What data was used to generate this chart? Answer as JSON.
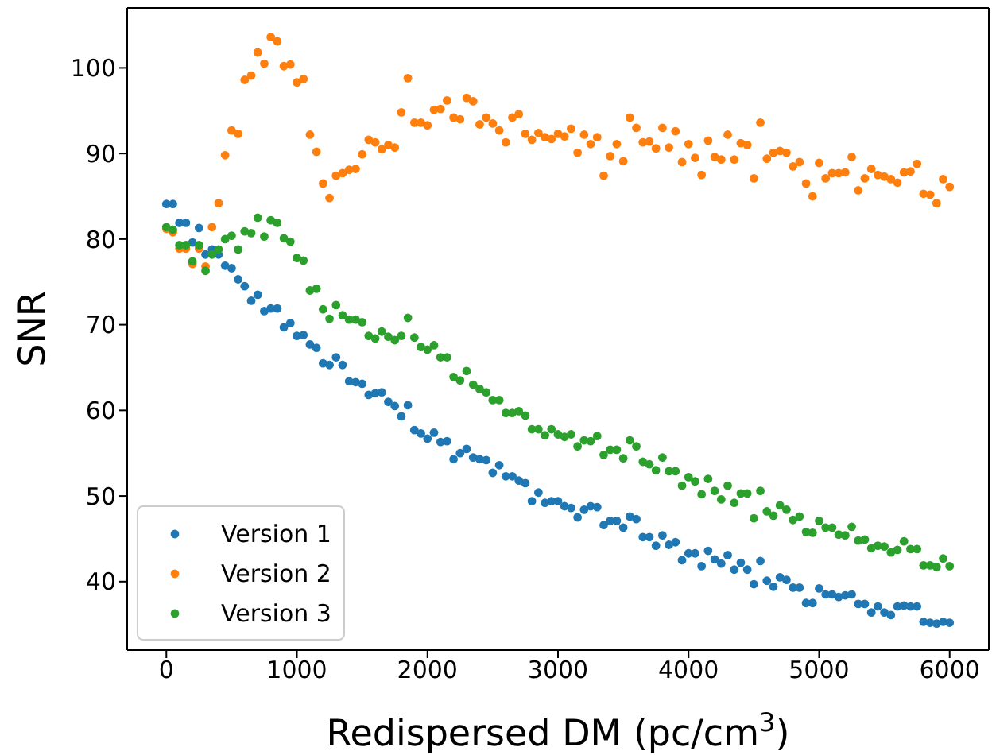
{
  "chart_data": {
    "type": "scatter",
    "xlabel": "Redispersed DM (pc/cm$^{3}$)",
    "ylabel": "SNR",
    "xlim": [
      -300,
      6300
    ],
    "ylim": [
      32,
      107
    ],
    "xticks": [
      0,
      1000,
      2000,
      3000,
      4000,
      5000,
      6000
    ],
    "yticks": [
      40,
      50,
      60,
      70,
      80,
      90,
      100
    ],
    "x": [
      0,
      50,
      100,
      150,
      200,
      250,
      300,
      350,
      400,
      450,
      500,
      550,
      600,
      650,
      700,
      750,
      800,
      850,
      900,
      950,
      1000,
      1050,
      1100,
      1150,
      1200,
      1250,
      1300,
      1350,
      1400,
      1450,
      1500,
      1550,
      1600,
      1650,
      1700,
      1750,
      1800,
      1850,
      1900,
      1950,
      2000,
      2050,
      2100,
      2150,
      2200,
      2250,
      2300,
      2350,
      2400,
      2450,
      2500,
      2550,
      2600,
      2650,
      2700,
      2750,
      2800,
      2850,
      2900,
      2950,
      3000,
      3050,
      3100,
      3150,
      3200,
      3250,
      3300,
      3350,
      3400,
      3450,
      3500,
      3550,
      3600,
      3650,
      3700,
      3750,
      3800,
      3850,
      3900,
      3950,
      4000,
      4050,
      4100,
      4150,
      4200,
      4250,
      4300,
      4350,
      4400,
      4450,
      4500,
      4550,
      4600,
      4650,
      4700,
      4750,
      4800,
      4850,
      4900,
      4950,
      5000,
      5050,
      5100,
      5150,
      5200,
      5250,
      5300,
      5350,
      5400,
      5450,
      5500,
      5550,
      5600,
      5650,
      5700,
      5750,
      5800,
      5850,
      5900,
      5950,
      6000
    ],
    "series": [
      {
        "name": "Version 1",
        "color": "#1f77b4",
        "values": [
          84.1,
          84.1,
          81.9,
          81.9,
          79.6,
          81.3,
          78.2,
          78.8,
          78.2,
          76.9,
          76.6,
          75.3,
          74.5,
          72.8,
          73.5,
          71.6,
          71.9,
          71.9,
          69.7,
          70.2,
          68.7,
          68.8,
          67.7,
          67.3,
          65.5,
          65.3,
          66.2,
          65.3,
          63.4,
          63.3,
          63.1,
          61.8,
          62.0,
          62.1,
          61.0,
          60.5,
          59.3,
          60.6,
          57.7,
          57.3,
          56.7,
          57.4,
          56.3,
          56.4,
          54.3,
          55.0,
          55.5,
          54.5,
          54.3,
          54.2,
          52.7,
          53.6,
          52.3,
          52.3,
          51.8,
          51.5,
          49.4,
          50.4,
          49.2,
          49.4,
          49.4,
          48.8,
          48.6,
          47.5,
          48.4,
          48.8,
          48.7,
          46.6,
          47.1,
          47.1,
          46.3,
          47.6,
          47.3,
          45.2,
          45.2,
          44.2,
          45.4,
          44.3,
          44.6,
          42.5,
          43.3,
          43.3,
          41.8,
          43.6,
          42.6,
          42.1,
          43.1,
          41.4,
          42.2,
          41.4,
          39.7,
          42.4,
          40.1,
          39.4,
          40.5,
          40.2,
          39.3,
          39.3,
          37.5,
          37.5,
          39.2,
          38.5,
          38.5,
          38.2,
          38.4,
          38.5,
          37.4,
          37.4,
          36.4,
          37.1,
          36.4,
          36.1,
          37.1,
          37.2,
          37.1,
          37.1,
          35.3,
          35.2,
          35.1,
          35.3,
          35.2
        ]
      },
      {
        "name": "Version 2",
        "color": "#ff7f0e",
        "values": [
          81.2,
          80.8,
          78.9,
          78.9,
          77.1,
          78.9,
          76.8,
          81.4,
          84.2,
          89.8,
          92.7,
          92.3,
          98.6,
          99.1,
          101.8,
          100.5,
          103.6,
          103.1,
          100.2,
          100.4,
          98.3,
          98.7,
          92.2,
          90.2,
          86.5,
          84.8,
          87.4,
          87.7,
          88.1,
          88.2,
          89.9,
          91.6,
          91.3,
          90.5,
          91.0,
          90.7,
          94.8,
          98.8,
          93.6,
          93.6,
          93.3,
          95.1,
          95.2,
          96.2,
          94.2,
          94.0,
          96.5,
          96.1,
          93.4,
          94.2,
          93.5,
          92.7,
          91.3,
          94.2,
          94.6,
          92.3,
          91.6,
          92.4,
          91.9,
          91.7,
          92.3,
          92.0,
          92.9,
          90.1,
          92.2,
          91.1,
          91.9,
          87.4,
          89.7,
          91.1,
          89.1,
          94.2,
          93.0,
          91.3,
          91.4,
          90.6,
          93.0,
          90.7,
          92.6,
          89.0,
          91.1,
          89.5,
          87.5,
          91.5,
          89.6,
          89.3,
          92.2,
          89.3,
          91.2,
          91.0,
          87.1,
          93.6,
          89.4,
          90.1,
          90.3,
          90.1,
          88.5,
          89.0,
          86.5,
          85.0,
          88.9,
          87.1,
          87.7,
          87.7,
          87.8,
          89.6,
          85.7,
          87.1,
          88.2,
          87.5,
          87.3,
          87.0,
          86.6,
          87.8,
          87.9,
          88.8,
          85.3,
          85.2,
          84.2,
          87.0,
          86.1
        ]
      },
      {
        "name": "Version 3",
        "color": "#2ca02c",
        "values": [
          81.4,
          81.1,
          79.3,
          79.3,
          77.4,
          79.3,
          76.3,
          78.2,
          78.8,
          80.0,
          80.4,
          78.8,
          80.9,
          80.7,
          82.5,
          80.3,
          82.2,
          81.9,
          80.1,
          79.7,
          77.8,
          77.5,
          74.0,
          74.2,
          71.8,
          70.7,
          72.3,
          71.1,
          70.6,
          70.6,
          70.3,
          68.7,
          68.4,
          69.2,
          68.6,
          68.2,
          68.7,
          70.8,
          68.5,
          67.4,
          67.1,
          67.6,
          66.2,
          66.2,
          63.9,
          63.5,
          64.6,
          63.0,
          62.5,
          62.1,
          61.2,
          61.2,
          59.7,
          59.7,
          59.9,
          59.4,
          57.8,
          57.8,
          57.1,
          57.8,
          57.2,
          56.9,
          57.2,
          55.8,
          56.5,
          56.4,
          57.0,
          54.8,
          55.4,
          55.4,
          54.4,
          56.5,
          55.8,
          54.0,
          53.7,
          53.0,
          54.5,
          52.9,
          52.9,
          51.2,
          52.2,
          51.7,
          50.2,
          52.0,
          50.6,
          49.6,
          51.2,
          49.2,
          50.3,
          50.3,
          47.4,
          50.6,
          48.2,
          47.7,
          48.9,
          48.4,
          47.2,
          47.6,
          45.8,
          45.7,
          47.1,
          46.3,
          46.3,
          45.5,
          45.4,
          46.4,
          44.8,
          44.9,
          43.9,
          44.2,
          44.1,
          43.4,
          43.7,
          44.7,
          43.8,
          43.8,
          41.9,
          41.9,
          41.7,
          42.7,
          41.8
        ]
      }
    ],
    "legend": "bottom left",
    "marker": "circle"
  }
}
